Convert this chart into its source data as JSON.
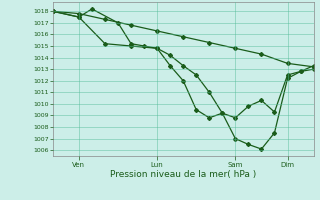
{
  "xlabel": "Pression niveau de la mer( hPa )",
  "background_color": "#cceee8",
  "grid_color": "#55bb99",
  "line_color": "#1a5c1a",
  "ylim": [
    1005.5,
    1018.8
  ],
  "yticks": [
    1006,
    1007,
    1008,
    1009,
    1010,
    1011,
    1012,
    1013,
    1014,
    1015,
    1016,
    1017,
    1018
  ],
  "x_day_labels": [
    "Ven",
    "Lun",
    "Sam",
    "Dim"
  ],
  "x_tick_positions": [
    1,
    4,
    7,
    9
  ],
  "line1_x": [
    0,
    1,
    2,
    3,
    4,
    5,
    6,
    7,
    8,
    9,
    10
  ],
  "line1_y": [
    1018.0,
    1017.8,
    1017.3,
    1016.8,
    1016.3,
    1015.8,
    1015.3,
    1014.8,
    1014.3,
    1013.5,
    1013.2
  ],
  "line2_x": [
    0,
    1,
    1.5,
    2.5,
    3,
    3.5,
    4,
    4.5,
    5,
    5.5,
    6,
    6.5,
    7,
    7.5,
    8,
    8.5,
    9,
    9.5,
    10
  ],
  "line2_y": [
    1018.0,
    1017.5,
    1018.2,
    1017.0,
    1015.2,
    1015.0,
    1014.8,
    1014.2,
    1013.3,
    1012.5,
    1011.0,
    1009.2,
    1008.8,
    1009.8,
    1010.3,
    1009.3,
    1012.5,
    1012.8,
    1013.3
  ],
  "line3_x": [
    0,
    1,
    2,
    3,
    4,
    4.5,
    5,
    5.5,
    6,
    6.5,
    7,
    7.5,
    8,
    8.5,
    9,
    9.5,
    10
  ],
  "line3_y": [
    1018.0,
    1017.5,
    1015.2,
    1015.0,
    1014.8,
    1013.3,
    1012.0,
    1009.5,
    1008.8,
    1009.2,
    1007.0,
    1006.5,
    1006.1,
    1007.5,
    1012.2,
    1012.8,
    1013.0
  ],
  "xmin": 0,
  "xmax": 10
}
